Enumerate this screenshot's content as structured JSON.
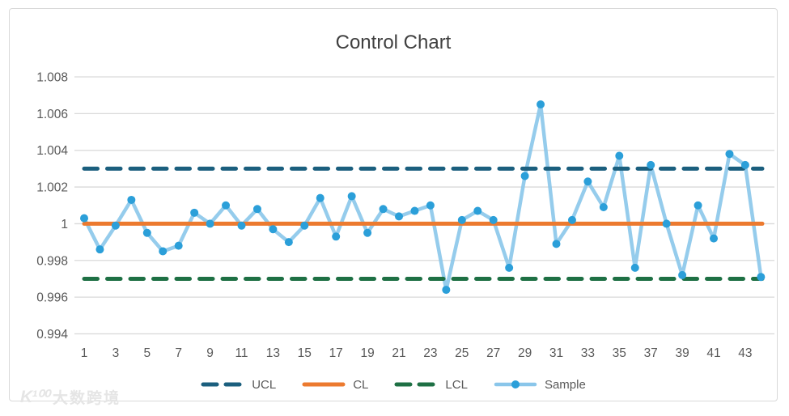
{
  "title": "Control Chart",
  "watermark": {
    "logo": "K¹⁰⁰",
    "text": "大数跨境"
  },
  "colors": {
    "ucl": "#1b5f7e",
    "cl": "#ec7a2f",
    "lcl": "#1e7044",
    "sample_line": "#8ac6ea",
    "sample_marker": "#2b9fd9",
    "grid": "#d9d9d9",
    "axis_text": "#595959",
    "title_text": "#404040",
    "border": "#d9d9d9"
  },
  "chart_data": {
    "type": "line",
    "title": "Control Chart",
    "xlabel": "",
    "ylabel": "",
    "ylim": [
      0.994,
      1.008
    ],
    "y_tick_step": 0.002,
    "y_tick_labels": [
      "1.008",
      "1.006",
      "1.004",
      "1.002",
      "1",
      "0.998",
      "0.996",
      "0.994"
    ],
    "x_tick_labels": [
      "1",
      "3",
      "5",
      "7",
      "9",
      "11",
      "13",
      "15",
      "17",
      "19",
      "21",
      "23",
      "25",
      "27",
      "29",
      "31",
      "33",
      "35",
      "37",
      "39",
      "41",
      "43"
    ],
    "x_count": 44,
    "grid": "horizontal",
    "legend_position": "bottom",
    "series": [
      {
        "name": "UCL",
        "kind": "constant",
        "value": 1.003,
        "style": "dashed",
        "color_key": "ucl"
      },
      {
        "name": "CL",
        "kind": "constant",
        "value": 1.0,
        "style": "solid",
        "color_key": "cl"
      },
      {
        "name": "LCL",
        "kind": "constant",
        "value": 0.997,
        "style": "dashed",
        "color_key": "lcl"
      },
      {
        "name": "Sample",
        "kind": "line-markers",
        "color_key": "sample_line",
        "marker_color_key": "sample_marker",
        "values": [
          1.0003,
          0.9986,
          0.9999,
          1.0013,
          0.9995,
          0.9985,
          0.9988,
          1.0006,
          1.0,
          1.001,
          0.9999,
          1.0008,
          0.9997,
          0.999,
          0.9999,
          1.0014,
          0.9993,
          1.0015,
          0.9995,
          1.0008,
          1.0004,
          1.0007,
          1.001,
          0.9964,
          1.0002,
          1.0007,
          1.0002,
          0.9976,
          1.0026,
          1.0065,
          0.9989,
          1.0002,
          1.0023,
          1.0009,
          1.0037,
          0.9976,
          1.0032,
          1.0,
          0.9972,
          1.001,
          0.9992,
          1.0038,
          1.0032,
          0.9971
        ]
      }
    ]
  }
}
